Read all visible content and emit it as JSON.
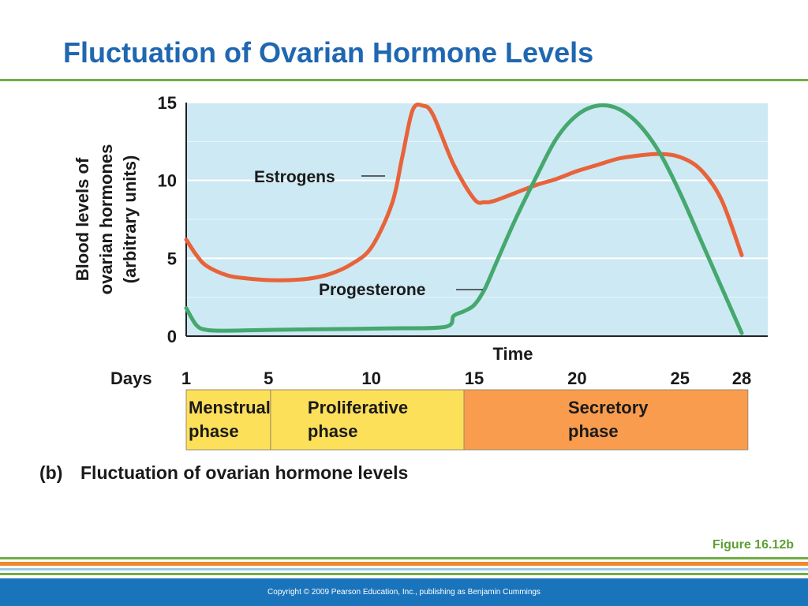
{
  "slide": {
    "title": "Fluctuation of Ovarian Hormone Levels",
    "figure_label": "Figure 16.12b",
    "copyright": "Copyright © 2009 Pearson Education, Inc., publishing as Benjamin Cummings"
  },
  "caption": {
    "letter": "(b)",
    "text": "Fluctuation of ovarian hormone levels"
  },
  "colors": {
    "title": "#1f67b1",
    "plot_background": "#cde9f3",
    "estrogens": "#e8633a",
    "progesterone": "#45a86e",
    "menstrual_phase": "#fde05a",
    "proliferative_phase": "#fde05a",
    "secretory_phase": "#f99c4e",
    "accent_green": "#6fae44",
    "footer": "#1a74bb"
  },
  "chart_data": {
    "type": "line",
    "ylabel_lines": [
      "Blood levels of",
      "ovarian hormones",
      "(arbitrary units)"
    ],
    "xlabel": "Time",
    "days_label": "Days",
    "xlim": [
      1,
      28
    ],
    "ylim": [
      0,
      15
    ],
    "yticks": [
      0,
      5,
      10,
      15
    ],
    "xticks": [
      1,
      5,
      10,
      15,
      20,
      25,
      28
    ],
    "grid": true,
    "series": [
      {
        "name": "Estrogens",
        "x": [
          1,
          1.5,
          2,
          3,
          4,
          5,
          6,
          7,
          8,
          9,
          10,
          11,
          11.5,
          12,
          12.5,
          13,
          14,
          15,
          15.5,
          16,
          17,
          18,
          19,
          20,
          21,
          22,
          23,
          24,
          25,
          26,
          27,
          28
        ],
        "y": [
          6.2,
          5.2,
          4.5,
          3.9,
          3.7,
          3.6,
          3.6,
          3.7,
          4.0,
          4.6,
          5.7,
          8.5,
          11.5,
          14.5,
          14.8,
          14.2,
          11.0,
          8.8,
          8.6,
          8.7,
          9.2,
          9.7,
          10.1,
          10.6,
          11.0,
          11.4,
          11.6,
          11.7,
          11.5,
          10.7,
          8.8,
          5.2
        ]
      },
      {
        "name": "Progesterone",
        "x": [
          1,
          1.5,
          2,
          3,
          5,
          8,
          11,
          13.6,
          14,
          14.5,
          15,
          15.5,
          16,
          17,
          18,
          19,
          20,
          21,
          22,
          23,
          24,
          25,
          26,
          27,
          28
        ],
        "y": [
          1.8,
          0.7,
          0.4,
          0.35,
          0.4,
          0.45,
          0.5,
          0.6,
          1.3,
          1.6,
          2.0,
          3.0,
          4.5,
          7.5,
          10.2,
          12.7,
          14.2,
          14.8,
          14.6,
          13.6,
          11.8,
          9.2,
          6.2,
          3.2,
          0.2
        ]
      }
    ],
    "phases": [
      {
        "name": "Menstrual phase",
        "line1": "Menstrual",
        "line2": "phase",
        "start": 1,
        "end": 5.1
      },
      {
        "name": "Proliferative phase",
        "line1": "Proliferative",
        "line2": "phase",
        "start": 5.1,
        "end": 14.5
      },
      {
        "name": "Secretory phase",
        "line1": "Secretory",
        "line2": "phase",
        "start": 14.5,
        "end": 28.3
      }
    ]
  }
}
